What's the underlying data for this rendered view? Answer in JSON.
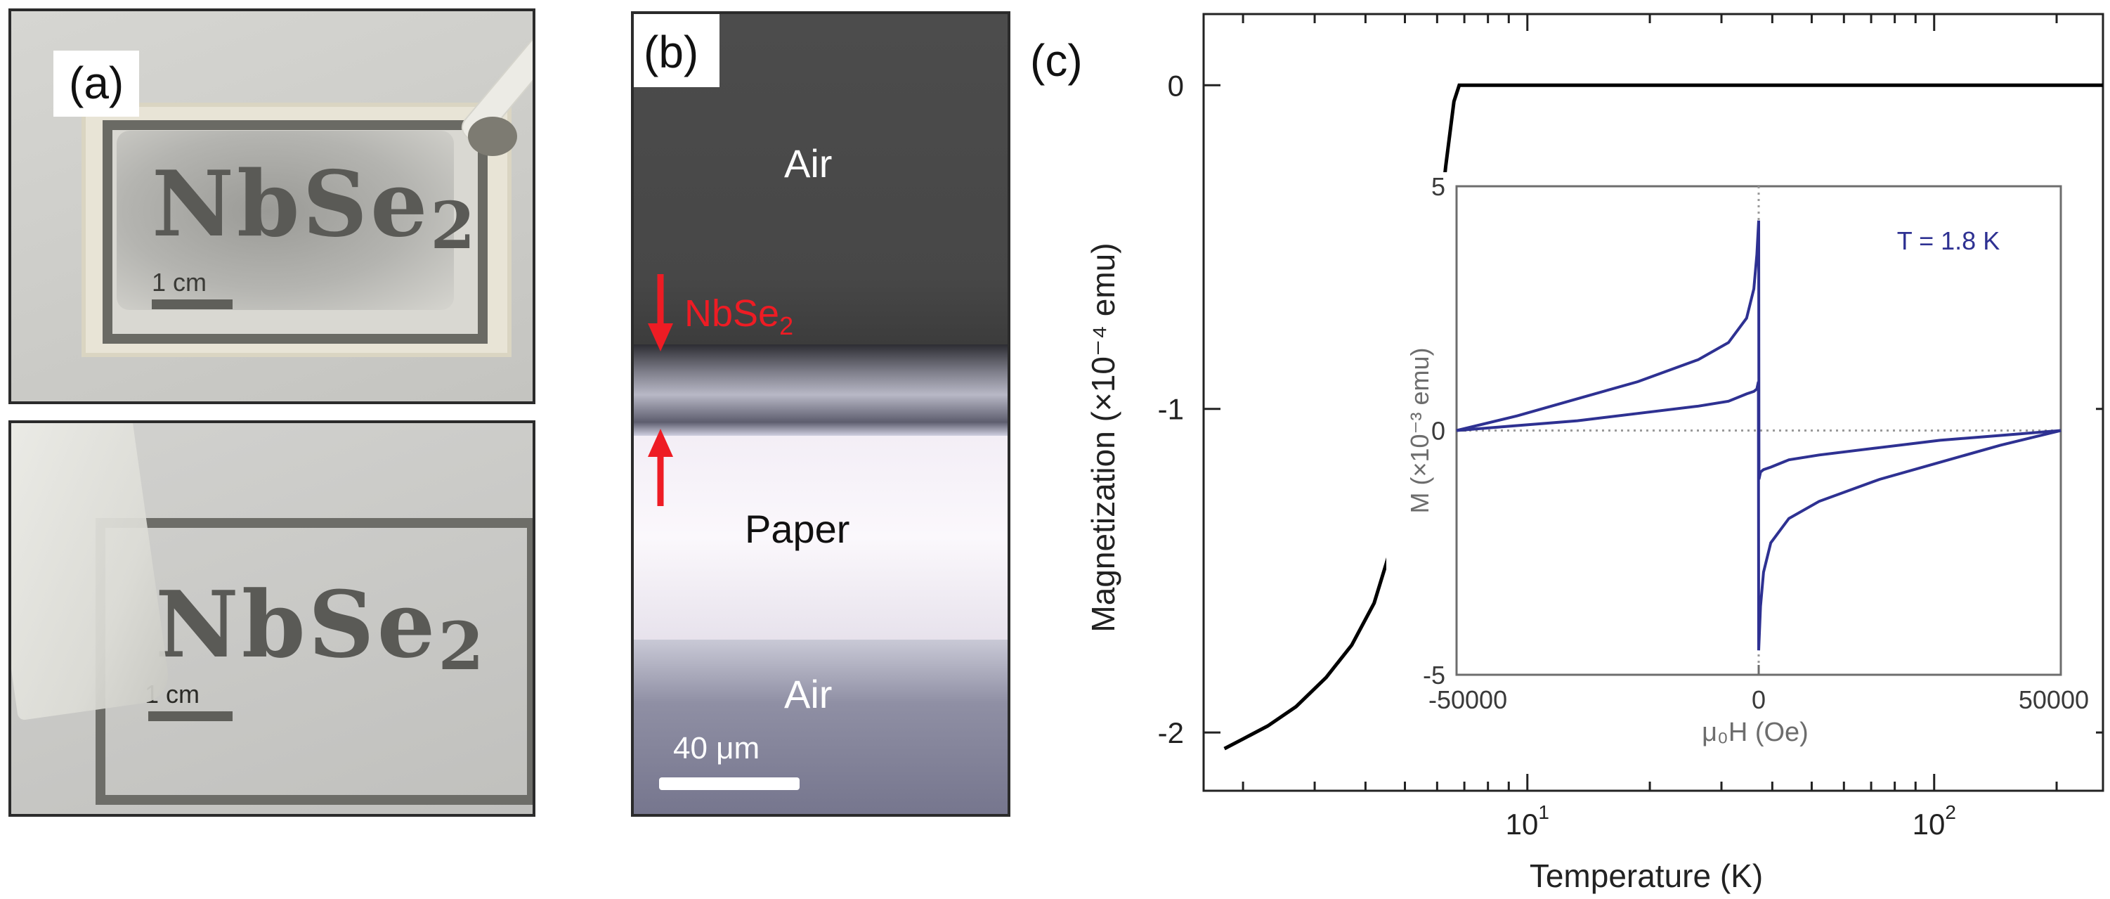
{
  "figure": {
    "panel_a": {
      "label": "(a)",
      "top_photo": {
        "stencil_main": "NbSe",
        "stencil_sub": "2",
        "scale_label": "1 cm"
      },
      "bottom_photo": {
        "stencil_main": "NbSe",
        "stencil_sub": "2",
        "scale_label": "1 cm"
      }
    },
    "panel_b": {
      "label": "(b)",
      "air_top": "Air",
      "layer_main": "NbSe",
      "layer_sub": "2",
      "paper": "Paper",
      "air_bottom": "Air",
      "scale_label": "40 μm",
      "arrow_color": "#ee1c24"
    },
    "panel_c": {
      "label": "(c)"
    }
  },
  "chart_data": [
    {
      "type": "line",
      "ylabel": "Magnetization (×10⁻⁴ emu)",
      "xlabel": "Temperature (K)",
      "x_scale": "log",
      "xlim": [
        1.6,
        260
      ],
      "ylim": [
        -2.18,
        0.22
      ],
      "xticks_major": [
        {
          "value": 10,
          "base": "10",
          "exp": "1"
        },
        {
          "value": 100,
          "base": "10",
          "exp": "2"
        }
      ],
      "yticks": [
        {
          "value": 0,
          "label": "0"
        },
        {
          "value": -1,
          "label": "-1"
        },
        {
          "value": -2,
          "label": "-2"
        }
      ],
      "series": [
        {
          "color": "#000000",
          "x": [
            1.8,
            2.0,
            2.3,
            2.7,
            3.2,
            3.7,
            4.2,
            4.7,
            5.2,
            5.6,
            6.0,
            6.3,
            6.6,
            6.8,
            7.0,
            7.2,
            7.5,
            10,
            20,
            50,
            100,
            200,
            260
          ],
          "y": [
            -2.05,
            -2.02,
            -1.98,
            -1.92,
            -1.83,
            -1.73,
            -1.6,
            -1.4,
            -1.1,
            -0.78,
            -0.5,
            -0.25,
            -0.05,
            0.0,
            0.0,
            0.0,
            0.0,
            0.0,
            0.0,
            0.0,
            0.0,
            0.0,
            0.0
          ]
        }
      ]
    },
    {
      "type": "line",
      "annotation": "T = 1.8 K",
      "ylabel": "M (×10⁻³ emu)",
      "xlabel": "μ₀H (Oe)",
      "xlim": [
        -50000,
        50000
      ],
      "ylim": [
        -5,
        5
      ],
      "xticks": [
        {
          "value": -50000,
          "label": "-50000"
        },
        {
          "value": 0,
          "label": "0"
        },
        {
          "value": 50000,
          "label": "50000"
        }
      ],
      "yticks": [
        {
          "value": 5,
          "label": "5"
        },
        {
          "value": 0,
          "label": "0"
        },
        {
          "value": -5,
          "label": "-5"
        }
      ],
      "series": [
        {
          "color": "#2e3192",
          "x": [
            -50000,
            -40000,
            -30000,
            -20000,
            -10000,
            -5000,
            -2000,
            -800,
            -300,
            0,
            50,
            300,
            800,
            2000,
            5000,
            10000,
            20000,
            30000,
            40000,
            50000
          ],
          "y": [
            0.0,
            0.3,
            0.65,
            1.0,
            1.45,
            1.8,
            2.3,
            2.9,
            3.6,
            4.3,
            -1.0,
            -0.85,
            -0.8,
            -0.75,
            -0.6,
            -0.5,
            -0.35,
            -0.2,
            -0.1,
            0.0
          ]
        },
        {
          "color": "#2e3192",
          "x": [
            50000,
            40000,
            30000,
            20000,
            10000,
            5000,
            2000,
            800,
            300,
            0,
            -50,
            -300,
            -800,
            -2000,
            -5000,
            -10000,
            -20000,
            -30000,
            -40000,
            -50000
          ],
          "y": [
            0.0,
            -0.3,
            -0.65,
            -1.0,
            -1.45,
            -1.8,
            -2.3,
            -2.9,
            -3.6,
            -4.5,
            1.0,
            0.85,
            0.8,
            0.75,
            0.6,
            0.5,
            0.35,
            0.2,
            0.1,
            0.0
          ]
        }
      ]
    }
  ]
}
